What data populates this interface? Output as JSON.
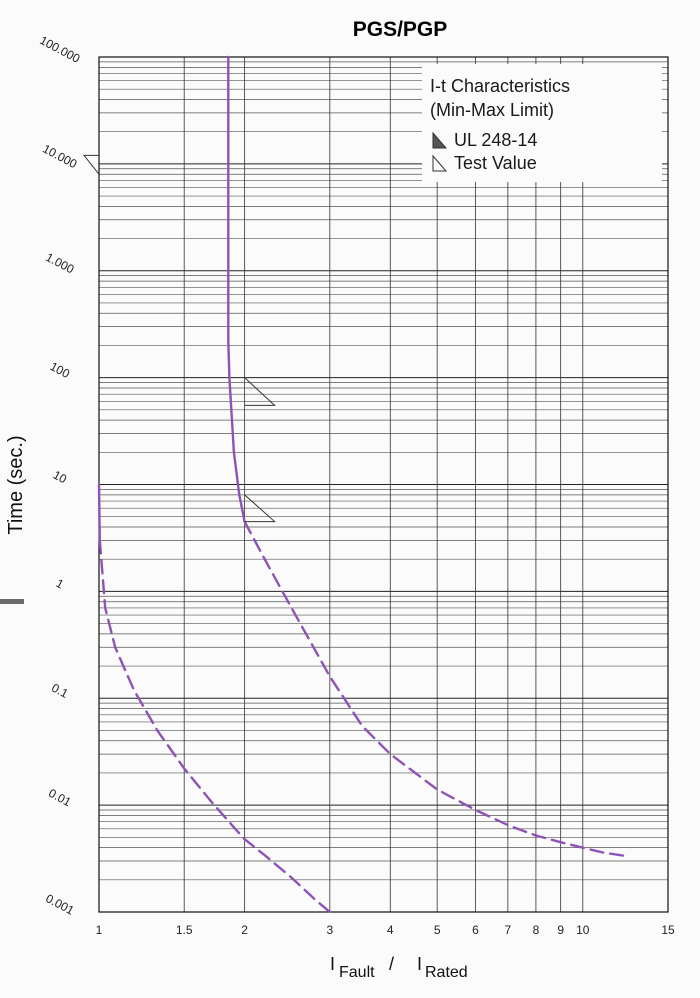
{
  "chart_data": {
    "type": "line",
    "title": "PGS/PGP",
    "ylabel": "Time (sec.)",
    "xlabel": {
      "part1": "I",
      "part1_sub": "Fault",
      "separator": "/",
      "part2": "I",
      "part2_sub": "Rated"
    },
    "x_scale": "log",
    "y_scale": "log",
    "xlim": [
      1,
      15
    ],
    "ylim": [
      0.001,
      100000
    ],
    "grid": true,
    "x_ticks": [
      {
        "value": 1,
        "label": "1"
      },
      {
        "value": 1.5,
        "label": "1.5"
      },
      {
        "value": 2,
        "label": "2"
      },
      {
        "value": 3,
        "label": "3"
      },
      {
        "value": 4,
        "label": "4"
      },
      {
        "value": 5,
        "label": "5"
      },
      {
        "value": 6,
        "label": "6"
      },
      {
        "value": 7,
        "label": "7"
      },
      {
        "value": 8,
        "label": "8"
      },
      {
        "value": 9,
        "label": "9"
      },
      {
        "value": 10,
        "label": "10"
      },
      {
        "value": 15,
        "label": "15"
      }
    ],
    "y_ticks": [
      {
        "value": 100000,
        "label": "100.000"
      },
      {
        "value": 10000,
        "label": "10.000"
      },
      {
        "value": 1000,
        "label": "1.000"
      },
      {
        "value": 100,
        "label": "100"
      },
      {
        "value": 10,
        "label": "10"
      },
      {
        "value": 1,
        "label": "1"
      },
      {
        "value": 0.1,
        "label": "0.1"
      },
      {
        "value": 0.01,
        "label": "0.01"
      },
      {
        "value": 0.001,
        "label": "0.001"
      }
    ],
    "legend": {
      "position": "top-right",
      "lines": [
        "I-t Characteristics",
        "(Min-Max Limit)"
      ],
      "entries": [
        {
          "label": "UL 248-14",
          "marker": "filled-triangle"
        },
        {
          "label": "Test Value",
          "marker": "outline-triangle"
        }
      ]
    },
    "series": [
      {
        "color": "#8e54b5",
        "segments": [
          {
            "style": "solid",
            "points": [
              [
                1.0,
                10
              ],
              [
                1.004,
                3
              ]
            ]
          },
          {
            "style": "dashed",
            "points": [
              [
                1.004,
                3
              ],
              [
                1.03,
                0.7
              ],
              [
                1.08,
                0.3
              ],
              [
                1.18,
                0.12
              ],
              [
                1.32,
                0.05
              ],
              [
                1.5,
                0.022
              ],
              [
                1.7,
                0.011
              ],
              [
                1.9,
                0.0062
              ],
              [
                2.0,
                0.0048
              ],
              [
                2.2,
                0.0034
              ],
              [
                2.5,
                0.0021
              ],
              [
                2.8,
                0.0013
              ],
              [
                3.0,
                0.001
              ]
            ]
          }
        ]
      },
      {
        "color": "#8e54b5",
        "segments": [
          {
            "style": "solid",
            "points": [
              [
                1.85,
                100000
              ],
              [
                1.85,
                10000
              ],
              [
                1.85,
                1000
              ],
              [
                1.85,
                220
              ],
              [
                1.86,
                100
              ],
              [
                1.9,
                20
              ],
              [
                1.95,
                8
              ],
              [
                2.0,
                4.5
              ]
            ]
          },
          {
            "style": "dashed",
            "points": [
              [
                2.0,
                4.5
              ],
              [
                2.2,
                2.0
              ],
              [
                2.5,
                0.7
              ],
              [
                3.0,
                0.16
              ],
              [
                3.5,
                0.055
              ],
              [
                4.0,
                0.03
              ],
              [
                5.0,
                0.014
              ],
              [
                6.0,
                0.009
              ],
              [
                7.0,
                0.0065
              ],
              [
                8.0,
                0.0052
              ],
              [
                9.0,
                0.0045
              ],
              [
                10.0,
                0.004
              ],
              [
                11.0,
                0.0036
              ],
              [
                12.5,
                0.0033
              ]
            ]
          }
        ]
      }
    ],
    "test_value_markers": [
      {
        "x": 2.0,
        "y_top": 100,
        "y_bottom": 55
      },
      {
        "x": 2.0,
        "y_top": 8,
        "y_bottom": 4.5
      }
    ],
    "ul_marker": {
      "x": 1.0,
      "y_top": 12000,
      "y_bottom": 8000
    }
  }
}
